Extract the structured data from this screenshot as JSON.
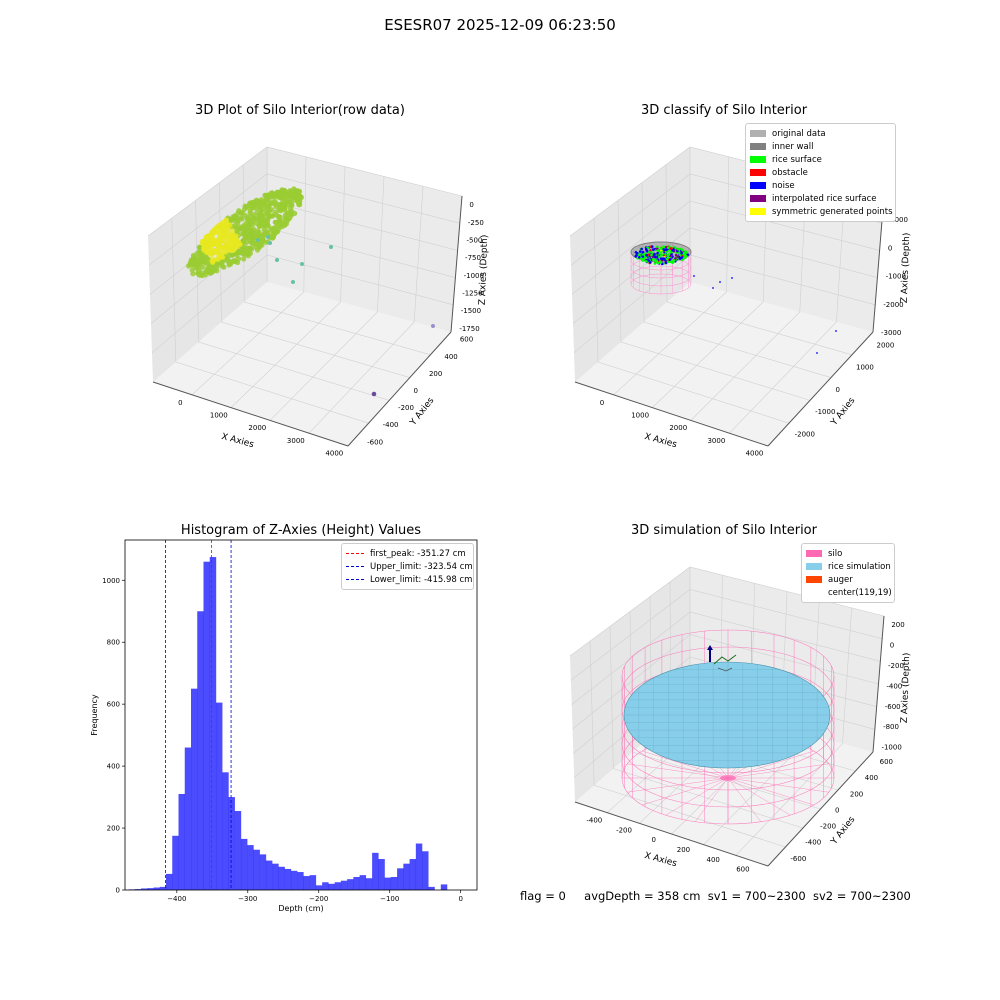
{
  "suptitle": "ESESR07 2025-12-09 06:23:50",
  "chart_data": [
    {
      "type": "scatter",
      "title": "3D Plot of Silo Interior(row data)",
      "xlabel": "X Axies",
      "ylabel": "Y Axies",
      "zlabel": "Z Axies (Depth)",
      "x_ticks": [
        "0",
        "1000",
        "2000",
        "3000",
        "4000"
      ],
      "y_ticks": [
        "-600",
        "-400",
        "-200",
        "0",
        "200",
        "400",
        "600"
      ],
      "z_ticks": [
        "0",
        "-250",
        "-500",
        "-750",
        "-1000",
        "-1250",
        "-1500",
        "-1750"
      ],
      "colors": {
        "surface": "#9ACD32",
        "highlight": "#E8E820",
        "outlier": "#66C2A5",
        "outlier_far": "#6B4C9A"
      }
    },
    {
      "type": "scatter",
      "title": "3D classify of Silo Interior",
      "xlabel": "X Axies",
      "ylabel": "Y Axies",
      "zlabel": "Z Axies (Depth)",
      "x_ticks": [
        "0",
        "1000",
        "2000",
        "3000",
        "4000"
      ],
      "y_ticks": [
        "-2000",
        "-1000",
        "0",
        "1000",
        "2000"
      ],
      "z_ticks": [
        "1000",
        "0",
        "-1000",
        "-2000",
        "-3000"
      ],
      "legend": [
        {
          "label": "original data",
          "color": "#b0b0b0"
        },
        {
          "label": "inner wall",
          "color": "#808080"
        },
        {
          "label": "rice surface",
          "color": "#00ff00"
        },
        {
          "label": "obstacle",
          "color": "#ff0000"
        },
        {
          "label": "noise",
          "color": "#0000ff"
        },
        {
          "label": "interpolated rice surface",
          "color": "#800080"
        },
        {
          "label": "symmetric generated points",
          "color": "#ffff00"
        }
      ]
    },
    {
      "type": "bar",
      "title": "Histogram of Z-Axies (Height) Values",
      "xlabel": "Depth (cm)",
      "ylabel": "Frequency",
      "xlim": [
        -473,
        23
      ],
      "ylim": [
        0,
        1130
      ],
      "x_ticks": [
        -400,
        -300,
        -200,
        -100,
        0
      ],
      "y_ticks": [
        0,
        200,
        400,
        600,
        800,
        1000
      ],
      "bin_width": 8.8,
      "bin_start": -468,
      "values": [
        2,
        3,
        5,
        6,
        8,
        10,
        52,
        175,
        310,
        460,
        650,
        900,
        1060,
        1075,
        605,
        380,
        300,
        255,
        165,
        145,
        130,
        115,
        95,
        85,
        75,
        68,
        62,
        58,
        45,
        48,
        15,
        25,
        20,
        25,
        30,
        35,
        42,
        48,
        38,
        120,
        100,
        40,
        42,
        70,
        85,
        100,
        150,
        125,
        10,
        0,
        18
      ],
      "color": "#0000ff",
      "lines": [
        {
          "label": "first_peak: -351.27 cm",
          "x": -351.27,
          "color": "#ff0000"
        },
        {
          "label": "Upper_limit: -323.54 cm",
          "x": -323.54,
          "color": "#0000cc"
        },
        {
          "label": "Lower_limit: -415.98 cm",
          "x": -415.98,
          "color": "#0000cc"
        }
      ]
    },
    {
      "type": "scatter",
      "title": "3D simulation of Silo Interior",
      "xlabel": "X Axies",
      "ylabel": "Y Axies",
      "zlabel": "Z Axies (Depth)",
      "x_ticks": [
        "-400",
        "-200",
        "0",
        "200",
        "400",
        "600"
      ],
      "y_ticks": [
        "-600",
        "-400",
        "-200",
        "0",
        "200",
        "400",
        "600"
      ],
      "z_ticks": [
        "200",
        "0",
        "-200",
        "-400",
        "-600",
        "-800",
        "-1000"
      ],
      "legend": [
        {
          "label": "silo",
          "color": "#ff69b4"
        },
        {
          "label": "rice simulation",
          "color": "#87ceeb"
        },
        {
          "label": "auger",
          "color": "#ff4500"
        },
        {
          "label": "center(119,19)",
          "color": "#ffffff"
        }
      ]
    }
  ],
  "status": {
    "flag": "flag = 0",
    "avg": "avgDepth = 358 cm",
    "sv1": "sv1 = 700~2300",
    "sv2": "sv2 = 700~2300"
  }
}
